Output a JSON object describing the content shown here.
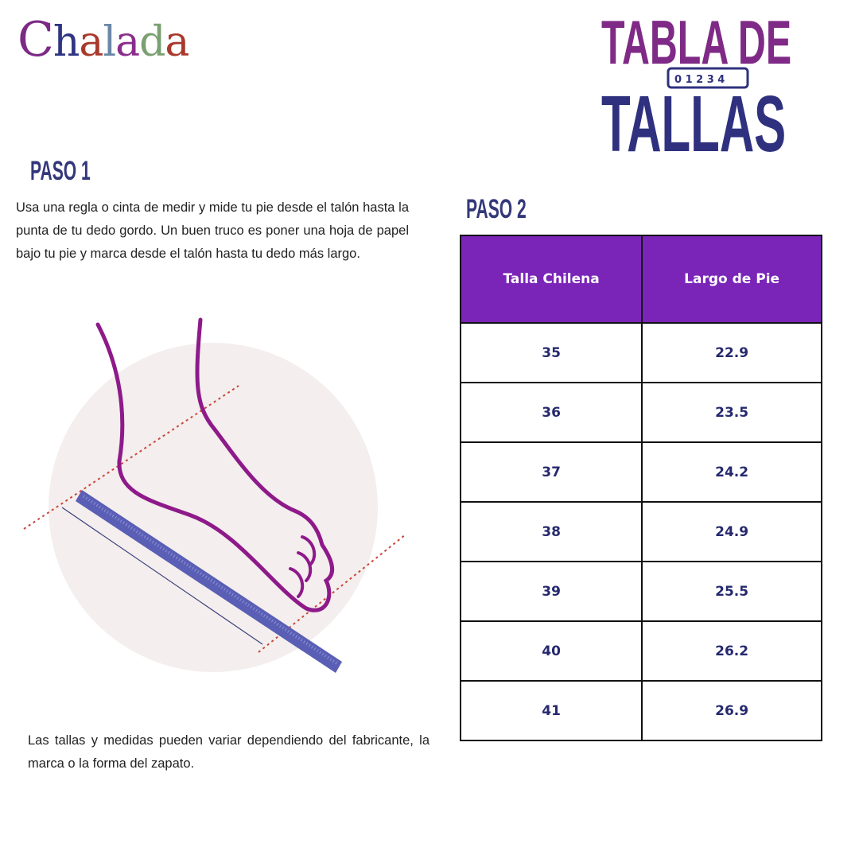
{
  "brand": {
    "logo_text": "Chalada",
    "logo_colors": [
      "#7c2a86",
      "#2f3483",
      "#a8392b",
      "#6b87a8",
      "#8a2d8c",
      "#7aa071",
      "#a8392b"
    ]
  },
  "title": {
    "line1": "TABLA DE",
    "line2": "TALLAS",
    "ruler_digits": "0 1 2 3 4",
    "color1": "#7f2a86",
    "color2": "#2f317f"
  },
  "step1": {
    "heading": "PASO 1",
    "text": "Usa una regla o cinta de medir y mide tu pie desde el talón hasta la punta de tu dedo gordo. Un buen truco es poner una hoja de papel bajo tu pie y marca desde el talón hasta tu dedo más largo."
  },
  "step2": {
    "heading": "PASO 2"
  },
  "table": {
    "headers": [
      "Talla Chilena",
      "Largo de Pie"
    ],
    "rows": [
      [
        "35",
        "22.9"
      ],
      [
        "36",
        "23.5"
      ],
      [
        "37",
        "24.2"
      ],
      [
        "38",
        "24.9"
      ],
      [
        "39",
        "25.5"
      ],
      [
        "40",
        "26.2"
      ],
      [
        "41",
        "26.9"
      ]
    ],
    "header_color": "#7a24b8"
  },
  "note": "Las tallas y medidas pueden variar dependiendo del fabricante, la marca o la forma del zapato."
}
